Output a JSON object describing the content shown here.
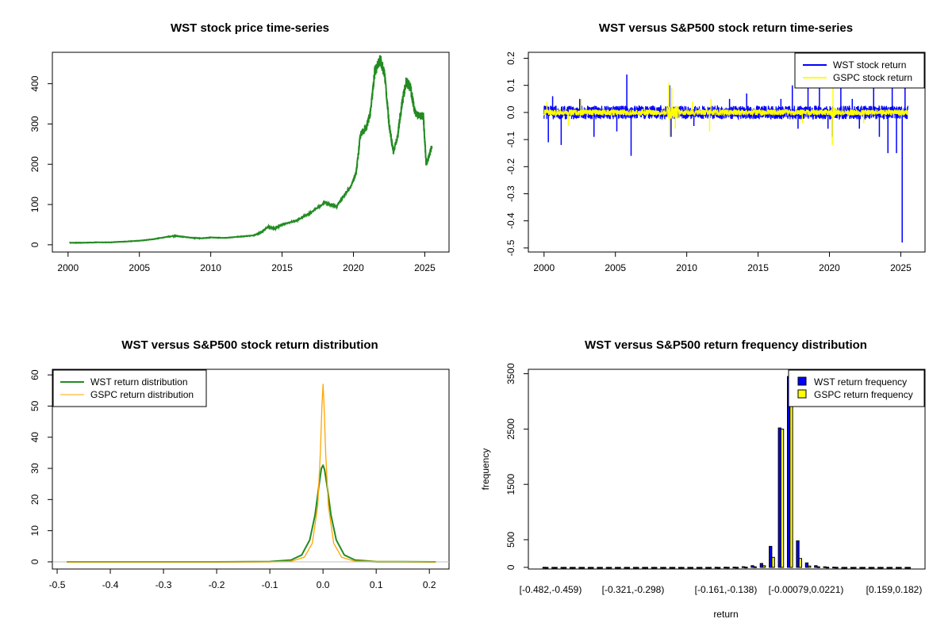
{
  "chart_data": [
    {
      "type": "line",
      "title": "WST stock price time-series",
      "xlabel": "",
      "ylabel": "",
      "xlim": [
        2000,
        2025.6
      ],
      "ylim": [
        0,
        470
      ],
      "x_ticks": [
        "2000",
        "2005",
        "2010",
        "2015",
        "2020",
        "2025"
      ],
      "y_ticks": [
        "0",
        "100",
        "200",
        "300",
        "400"
      ],
      "color": "#228B22",
      "series": [
        {
          "x": [
            2000.1,
            2001,
            2002,
            2003,
            2004,
            2005,
            2006,
            2007,
            2007.5,
            2008,
            2008.8,
            2009.3,
            2010,
            2011,
            2012,
            2013,
            2013.5,
            2014,
            2014.5,
            2015,
            2016,
            2017,
            2018,
            2018.8,
            2019.3,
            2019.9,
            2020.2,
            2020.5,
            2020.9,
            2021.2,
            2021.5,
            2021.9,
            2022.2,
            2022.5,
            2022.8,
            2023.1,
            2023.4,
            2023.7,
            2024,
            2024.3,
            2024.6,
            2024.9,
            2025.1,
            2025.3,
            2025.5
          ],
          "y": [
            5,
            5,
            6,
            6,
            8,
            10,
            14,
            20,
            22,
            20,
            17,
            16,
            18,
            17,
            20,
            23,
            30,
            45,
            40,
            50,
            60,
            80,
            105,
            95,
            120,
            150,
            180,
            275,
            290,
            330,
            430,
            460,
            420,
            300,
            230,
            270,
            350,
            405,
            390,
            330,
            320,
            320,
            200,
            220,
            245
          ]
        }
      ]
    },
    {
      "type": "line",
      "title": "WST versus S&P500 stock return time-series",
      "xlabel": "",
      "ylabel": "",
      "xlim": [
        2000,
        2025.6
      ],
      "ylim": [
        -0.5,
        0.2
      ],
      "x_ticks": [
        "2000",
        "2005",
        "2010",
        "2015",
        "2020",
        "2025"
      ],
      "y_ticks": [
        "-0.5",
        "-0.4",
        "-0.3",
        "-0.2",
        "-0.1",
        "0.0",
        "0.1",
        "0.2"
      ],
      "legend": "top-right",
      "series": [
        {
          "name": "WST stock return",
          "color": "#0000FF",
          "spikes": [
            [
              2000.3,
              -0.11
            ],
            [
              2000.6,
              0.06
            ],
            [
              2001.2,
              -0.12
            ],
            [
              2002.5,
              0.05
            ],
            [
              2003.5,
              -0.09
            ],
            [
              2005.1,
              -0.07
            ],
            [
              2005.8,
              0.14
            ],
            [
              2006.1,
              -0.16
            ],
            [
              2008.8,
              0.1
            ],
            [
              2008.9,
              -0.09
            ],
            [
              2010.5,
              -0.05
            ],
            [
              2013,
              0.05
            ],
            [
              2014.2,
              0.07
            ],
            [
              2016.6,
              0.05
            ],
            [
              2017.4,
              0.1
            ],
            [
              2017.8,
              -0.06
            ],
            [
              2018.5,
              0.09
            ],
            [
              2019.3,
              0.1
            ],
            [
              2019.9,
              -0.06
            ],
            [
              2020.2,
              -0.09
            ],
            [
              2020.8,
              0.1
            ],
            [
              2021.6,
              0.05
            ],
            [
              2022.1,
              -0.06
            ],
            [
              2023.1,
              0.1
            ],
            [
              2023.5,
              -0.09
            ],
            [
              2024.1,
              -0.15
            ],
            [
              2024.4,
              0.1
            ],
            [
              2024.7,
              -0.15
            ],
            [
              2025.1,
              -0.48
            ],
            [
              2025.3,
              0.12
            ]
          ]
        },
        {
          "name": "GSPC stock return",
          "color": "#FFFF00",
          "spikes": [
            [
              2000.2,
              0.04
            ],
            [
              2001.7,
              -0.05
            ],
            [
              2002.6,
              0.05
            ],
            [
              2008.75,
              0.11
            ],
            [
              2008.8,
              -0.09
            ],
            [
              2008.95,
              0.09
            ],
            [
              2009.2,
              -0.06
            ],
            [
              2010.4,
              0.04
            ],
            [
              2011.6,
              -0.07
            ],
            [
              2011.7,
              0.05
            ],
            [
              2018.1,
              -0.04
            ],
            [
              2020.2,
              -0.12
            ],
            [
              2020.25,
              0.09
            ],
            [
              2022.4,
              -0.04
            ]
          ]
        }
      ]
    },
    {
      "type": "line",
      "title": "WST versus S&P500 stock return distribution",
      "xlabel": "",
      "ylabel": "",
      "xlim": [
        -0.5,
        0.22
      ],
      "ylim": [
        0,
        60
      ],
      "x_ticks": [
        "-0.5",
        "-0.4",
        "-0.3",
        "-0.2",
        "-0.1",
        "0.0",
        "0.1",
        "0.2"
      ],
      "y_ticks": [
        "0",
        "10",
        "20",
        "30",
        "40",
        "50",
        "60"
      ],
      "legend": "top-left",
      "series": [
        {
          "name": "WST return distribution",
          "color": "#228B22",
          "x": [
            -0.482,
            -0.2,
            -0.1,
            -0.06,
            -0.04,
            -0.025,
            -0.015,
            -0.008,
            -0.003,
            0,
            0.003,
            0.008,
            0.015,
            0.025,
            0.04,
            0.06,
            0.1,
            0.212
          ],
          "y": [
            0,
            0,
            0.1,
            0.6,
            2.2,
            7,
            15,
            24,
            30,
            31,
            29.5,
            24,
            15,
            7,
            2.2,
            0.6,
            0.1,
            0
          ]
        },
        {
          "name": "GSPC return distribution",
          "color": "#FFA500",
          "x": [
            -0.482,
            -0.1,
            -0.06,
            -0.035,
            -0.02,
            -0.01,
            -0.005,
            -0.002,
            0,
            0.002,
            0.005,
            0.01,
            0.02,
            0.035,
            0.06,
            0.212
          ],
          "y": [
            0,
            0,
            0.2,
            1.5,
            6,
            18,
            35,
            50,
            57,
            50,
            35,
            18,
            6,
            1.5,
            0.2,
            0
          ]
        }
      ]
    },
    {
      "type": "bar",
      "title": "WST versus S&P500 return frequency distribution",
      "xlabel": "return",
      "ylabel": "frequency",
      "ylim": [
        0,
        3500
      ],
      "y_ticks": [
        "0",
        "500",
        "1500",
        "2500",
        "3500"
      ],
      "category_labels_shown": [
        "[-0.482,-0.459)",
        "[-0.321,-0.298)",
        "[-0.161,-0.138)",
        "[-0.00079,0.0221)",
        "[0.159,0.182)"
      ],
      "legend": "top-right",
      "series": [
        {
          "name": "WST return frequency",
          "color": "#0000FF",
          "values": [
            1,
            0,
            0,
            0,
            0,
            0,
            0,
            0,
            0,
            0,
            0,
            0,
            0,
            0,
            0,
            0,
            0,
            0,
            0,
            2,
            3,
            5,
            12,
            30,
            70,
            380,
            2520,
            3450,
            480,
            80,
            30,
            10,
            5,
            0,
            0,
            0,
            0,
            0,
            0,
            0,
            0
          ]
        },
        {
          "name": "GSPC return frequency",
          "color": "#FFFF00",
          "values": [
            0,
            0,
            0,
            0,
            0,
            0,
            0,
            0,
            0,
            0,
            0,
            0,
            0,
            0,
            0,
            0,
            0,
            0,
            0,
            0,
            1,
            2,
            4,
            10,
            30,
            180,
            2500,
            3500,
            160,
            25,
            10,
            3,
            1,
            0,
            0,
            0,
            0,
            0,
            0,
            0,
            0
          ]
        }
      ]
    }
  ]
}
